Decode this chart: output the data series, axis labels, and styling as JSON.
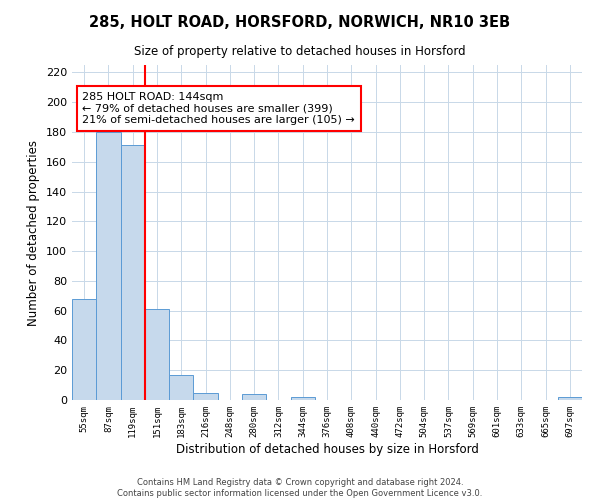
{
  "title1": "285, HOLT ROAD, HORSFORD, NORWICH, NR10 3EB",
  "title2": "Size of property relative to detached houses in Horsford",
  "xlabel": "Distribution of detached houses by size in Horsford",
  "ylabel": "Number of detached properties",
  "bar_labels": [
    "55sqm",
    "87sqm",
    "119sqm",
    "151sqm",
    "183sqm",
    "216sqm",
    "248sqm",
    "280sqm",
    "312sqm",
    "344sqm",
    "376sqm",
    "408sqm",
    "440sqm",
    "472sqm",
    "504sqm",
    "537sqm",
    "569sqm",
    "601sqm",
    "633sqm",
    "665sqm",
    "697sqm"
  ],
  "bar_heights": [
    68,
    180,
    171,
    61,
    17,
    5,
    0,
    4,
    0,
    2,
    0,
    0,
    0,
    0,
    0,
    0,
    0,
    0,
    0,
    0,
    2
  ],
  "bar_color": "#c6d9ec",
  "bar_edge_color": "#5b9bd5",
  "ylim": [
    0,
    225
  ],
  "yticks": [
    0,
    20,
    40,
    60,
    80,
    100,
    120,
    140,
    160,
    180,
    200,
    220
  ],
  "vline_color": "#ff0000",
  "annotation_title": "285 HOLT ROAD: 144sqm",
  "annotation_line1": "← 79% of detached houses are smaller (399)",
  "annotation_line2": "21% of semi-detached houses are larger (105) →",
  "footer1": "Contains HM Land Registry data © Crown copyright and database right 2024.",
  "footer2": "Contains public sector information licensed under the Open Government Licence v3.0.",
  "background_color": "#ffffff",
  "grid_color": "#c8d8e8"
}
